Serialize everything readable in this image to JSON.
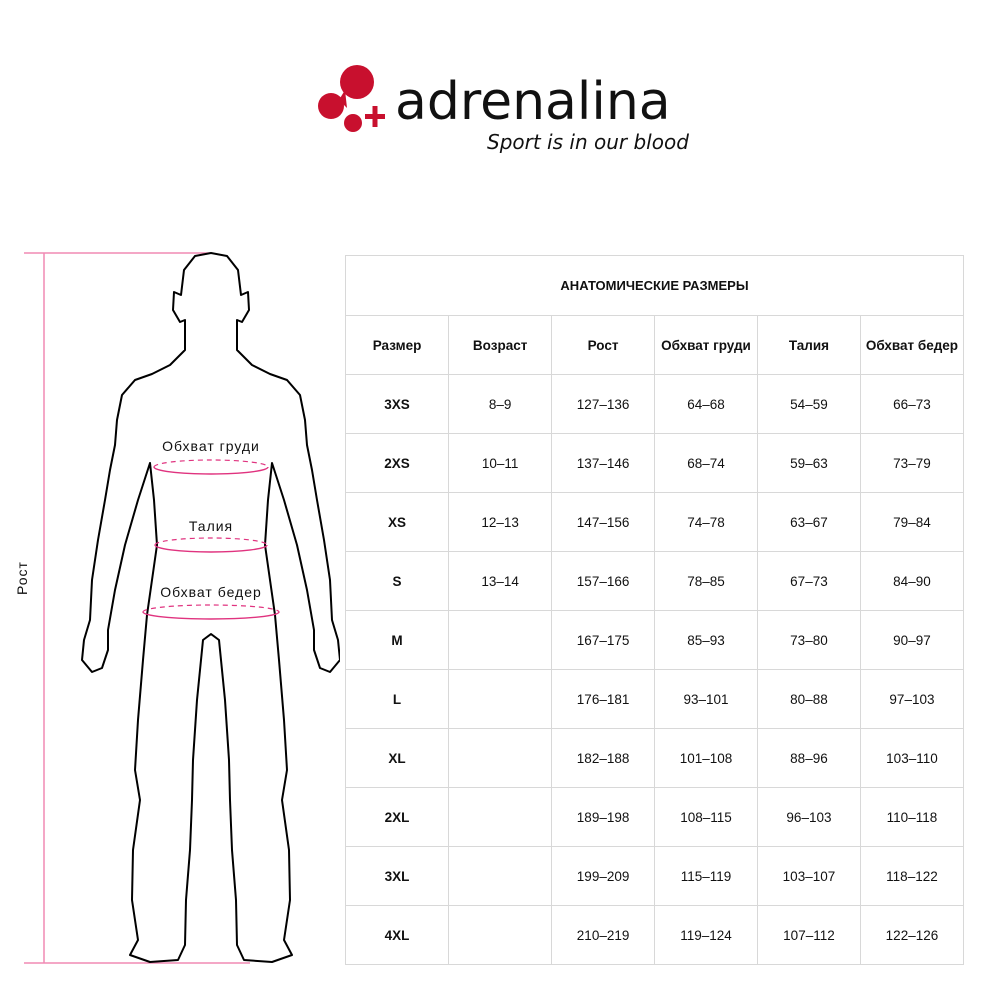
{
  "brand": {
    "name": "adrenalina",
    "tagline": "Sport is in our blood",
    "color": "#c8102e"
  },
  "figure": {
    "height_label": "Рост",
    "chest_label": "Обхват груди",
    "waist_label": "Талия",
    "hips_label": "Обхват бедер",
    "measure_color": "#e0337f"
  },
  "table": {
    "title": "АНАТОМИЧЕСКИЕ РАЗМЕРЫ",
    "headers": [
      "Размер",
      "Возраст",
      "Рост",
      "Обхват груди",
      "Талия",
      "Обхват бедер"
    ],
    "rows": [
      [
        "3XS",
        "8–9",
        "127–136",
        "64–68",
        "54–59",
        "66–73"
      ],
      [
        "2XS",
        "10–11",
        "137–146",
        "68–74",
        "59–63",
        "73–79"
      ],
      [
        "XS",
        "12–13",
        "147–156",
        "74–78",
        "63–67",
        "79–84"
      ],
      [
        "S",
        "13–14",
        "157–166",
        "78–85",
        "67–73",
        "84–90"
      ],
      [
        "M",
        "",
        "167–175",
        "85–93",
        "73–80",
        "90–97"
      ],
      [
        "L",
        "",
        "176–181",
        "93–101",
        "80–88",
        "97–103"
      ],
      [
        "XL",
        "",
        "182–188",
        "101–108",
        "88–96",
        "103–110"
      ],
      [
        "2XL",
        "",
        "189–198",
        "108–115",
        "96–103",
        "110–118"
      ],
      [
        "3XL",
        "",
        "199–209",
        "115–119",
        "103–107",
        "118–122"
      ],
      [
        "4XL",
        "",
        "210–219",
        "119–124",
        "107–112",
        "122–126"
      ]
    ]
  }
}
